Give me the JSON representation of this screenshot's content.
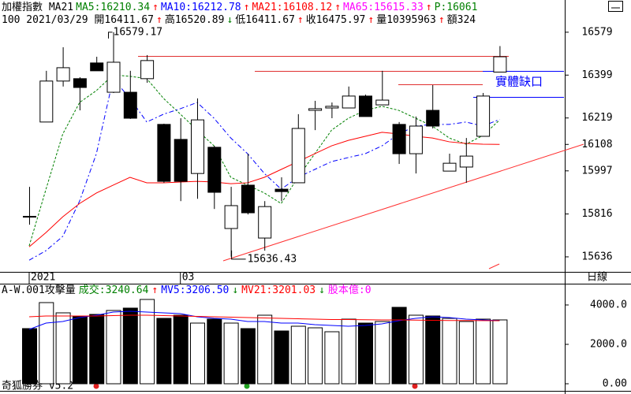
{
  "chart_data": {
    "type": "candlestick",
    "header": [
      [
        {
          "text": "加權指數 MA21",
          "color": "#000000"
        },
        {
          "text": "MA5:16210.34",
          "color": "#008000"
        },
        {
          "text": "↑",
          "color": "#ff0000"
        },
        {
          "text": "MA10:16212.78",
          "color": "#0000ff"
        },
        {
          "text": "↑",
          "color": "#ff0000"
        },
        {
          "text": "MA21:16108.12",
          "color": "#ff0000"
        },
        {
          "text": "↑",
          "color": "#ff0000"
        },
        {
          "text": "MA65:15615.33",
          "color": "#ff00ff"
        },
        {
          "text": "↑",
          "color": "#ff0000"
        },
        {
          "text": "P:16061",
          "color": "#008000"
        }
      ],
      [
        {
          "text": "100 2021/03/29 開16411.67",
          "color": "#000000"
        },
        {
          "text": "↑",
          "color": "#ff0000"
        },
        {
          "text": "高16520.89",
          "color": "#000000"
        },
        {
          "text": "↓",
          "color": "#008000"
        },
        {
          "text": "低16411.67",
          "color": "#000000"
        },
        {
          "text": "↑",
          "color": "#ff0000"
        },
        {
          "text": "收16475.97",
          "color": "#000000"
        },
        {
          "text": "↑",
          "color": "#ff0000"
        },
        {
          "text": "量10395963",
          "color": "#000000"
        },
        {
          "text": "↑",
          "color": "#ff0000"
        },
        {
          "text": "額324",
          "color": "#000000"
        }
      ]
    ],
    "categories": [
      "2021",
      null,
      null,
      null,
      null,
      null,
      null,
      null,
      null,
      "03",
      null,
      null,
      null,
      null,
      null,
      null,
      null,
      null,
      null,
      null,
      null,
      null,
      null,
      null,
      null,
      null,
      null,
      null,
      null
    ],
    "period_label": "日線",
    "open": [
      15806,
      16202,
      16374,
      16384,
      16450,
      16327,
      16327,
      16384,
      16192,
      16129,
      15986,
      16096,
      15755,
      15937,
      15715,
      15920,
      15947,
      16251,
      16261,
      16261,
      16311,
      16274,
      16192,
      16069,
      16251,
      15996,
      16013,
      16142,
      16411.67
    ],
    "high": [
      15930,
      16417,
      16516,
      16390,
      16476,
      16579.17,
      16417,
      16483,
      16195,
      16218,
      16301,
      16102,
      15930,
      16069,
      15870,
      15970,
      16235,
      16291,
      16284,
      16351,
      16317,
      16417,
      16202,
      16225,
      16357,
      16069,
      16135,
      16324,
      16520.89
    ],
    "low": [
      15771,
      16202,
      16351,
      16251,
      16417,
      16324,
      16215,
      16367,
      15947,
      15870,
      15880,
      15837,
      15636.43,
      15814,
      15662,
      15870,
      15947,
      16168,
      16218,
      16261,
      16225,
      16274,
      16026,
      15986,
      16175,
      15996,
      15947,
      16142,
      16411.67
    ],
    "close": [
      15803,
      16374,
      16430,
      16347,
      16417,
      16453,
      16218,
      16460,
      15953,
      15953,
      16211,
      15907,
      15851,
      15821,
      15847,
      15910,
      16175,
      16258,
      16268,
      16311,
      16225,
      16294,
      16069,
      16185,
      16185,
      16029,
      16059,
      16311,
      16475.97
    ],
    "series": [
      {
        "color": "#008000",
        "dash": "3,2",
        "values": [
          15682,
          15920,
          16152,
          16284,
          16334,
          16400,
          16394,
          16384,
          16301,
          16235,
          16168,
          16102,
          15970,
          15937,
          15904,
          15860,
          15970,
          16069,
          16168,
          16218,
          16251,
          16268,
          16251,
          16218,
          16185,
          16135,
          16109,
          16145,
          16210.34
        ]
      },
      {
        "color": "#0000ff",
        "dash": "6,3,2,3",
        "values": [
          15622,
          15662,
          15722,
          15870,
          16069,
          16384,
          16301,
          16202,
          16235,
          16258,
          16284,
          16218,
          16135,
          16069,
          15986,
          15920,
          15970,
          16003,
          16036,
          16053,
          16069,
          16102,
          16152,
          16185,
          16192,
          16192,
          16202,
          16185,
          16212.78
        ]
      },
      {
        "color": "#ff0000",
        "dash": "",
        "values": [
          15678,
          15738,
          15804,
          15860,
          15904,
          15937,
          15970,
          15947,
          15947,
          15950,
          15953,
          15950,
          15943,
          15947,
          15970,
          16003,
          16036,
          16069,
          16102,
          16125,
          16142,
          16159,
          16152,
          16142,
          16135,
          16119,
          16112,
          16109,
          16108.12
        ]
      }
    ],
    "ylim": [
      15573,
      16615
    ],
    "yticks": [
      16579,
      16399,
      16219,
      16108,
      15997,
      15816,
      15636
    ],
    "annotations": [
      {
        "text": "16579.17"
      },
      {
        "text": "15636.43"
      },
      {
        "text": "實體缺口",
        "color": "#0000ff"
      }
    ],
    "volume": {
      "header": [
        {
          "text": "A-W.001攻擊量",
          "color": "#000000"
        },
        {
          "text": "成交:3240.64",
          "color": "#008000"
        },
        {
          "text": "↑",
          "color": "#ff0000"
        },
        {
          "text": "MV5:3206.50",
          "color": "#0000ff"
        },
        {
          "text": "↓",
          "color": "#008000"
        },
        {
          "text": "MV21:3201.03",
          "color": "#ff0000"
        },
        {
          "text": "↓",
          "color": "#008000"
        },
        {
          "text": "股本億:0",
          "color": "#ff00ff"
        }
      ],
      "values": [
        2800,
        4120,
        3600,
        3440,
        3520,
        3720,
        3840,
        4280,
        3320,
        3480,
        3080,
        3280,
        3080,
        2800,
        3480,
        2680,
        2920,
        2840,
        2640,
        3280,
        3080,
        3160,
        3880,
        3480,
        3440,
        3320,
        3160,
        3280,
        3240.64
      ],
      "series": [
        {
          "color": "#0000ff",
          "values": [
            2760,
            3080,
            3160,
            3360,
            3480,
            3640,
            3680,
            3640,
            3600,
            3560,
            3400,
            3320,
            3280,
            3160,
            3160,
            3080,
            3080,
            3000,
            2960,
            2920,
            2960,
            3040,
            3200,
            3320,
            3400,
            3360,
            3280,
            3240,
            3206.5
          ]
        },
        {
          "color": "#ff0000",
          "values": [
            3400,
            3440,
            3440,
            3440,
            3440,
            3460,
            3480,
            3480,
            3460,
            3440,
            3420,
            3400,
            3380,
            3360,
            3340,
            3320,
            3300,
            3280,
            3260,
            3260,
            3250,
            3240,
            3240,
            3230,
            3220,
            3210,
            3210,
            3205,
            3201.03
          ]
        }
      ],
      "ylim": [
        0,
        5000
      ],
      "yticks": [
        {
          "value": 4000,
          "label": "4000.0"
        },
        {
          "value": 2000,
          "label": "2000.0"
        },
        {
          "value": 0,
          "label": "0.00"
        }
      ]
    },
    "footer": "奇狐勝券 v5.2"
  }
}
